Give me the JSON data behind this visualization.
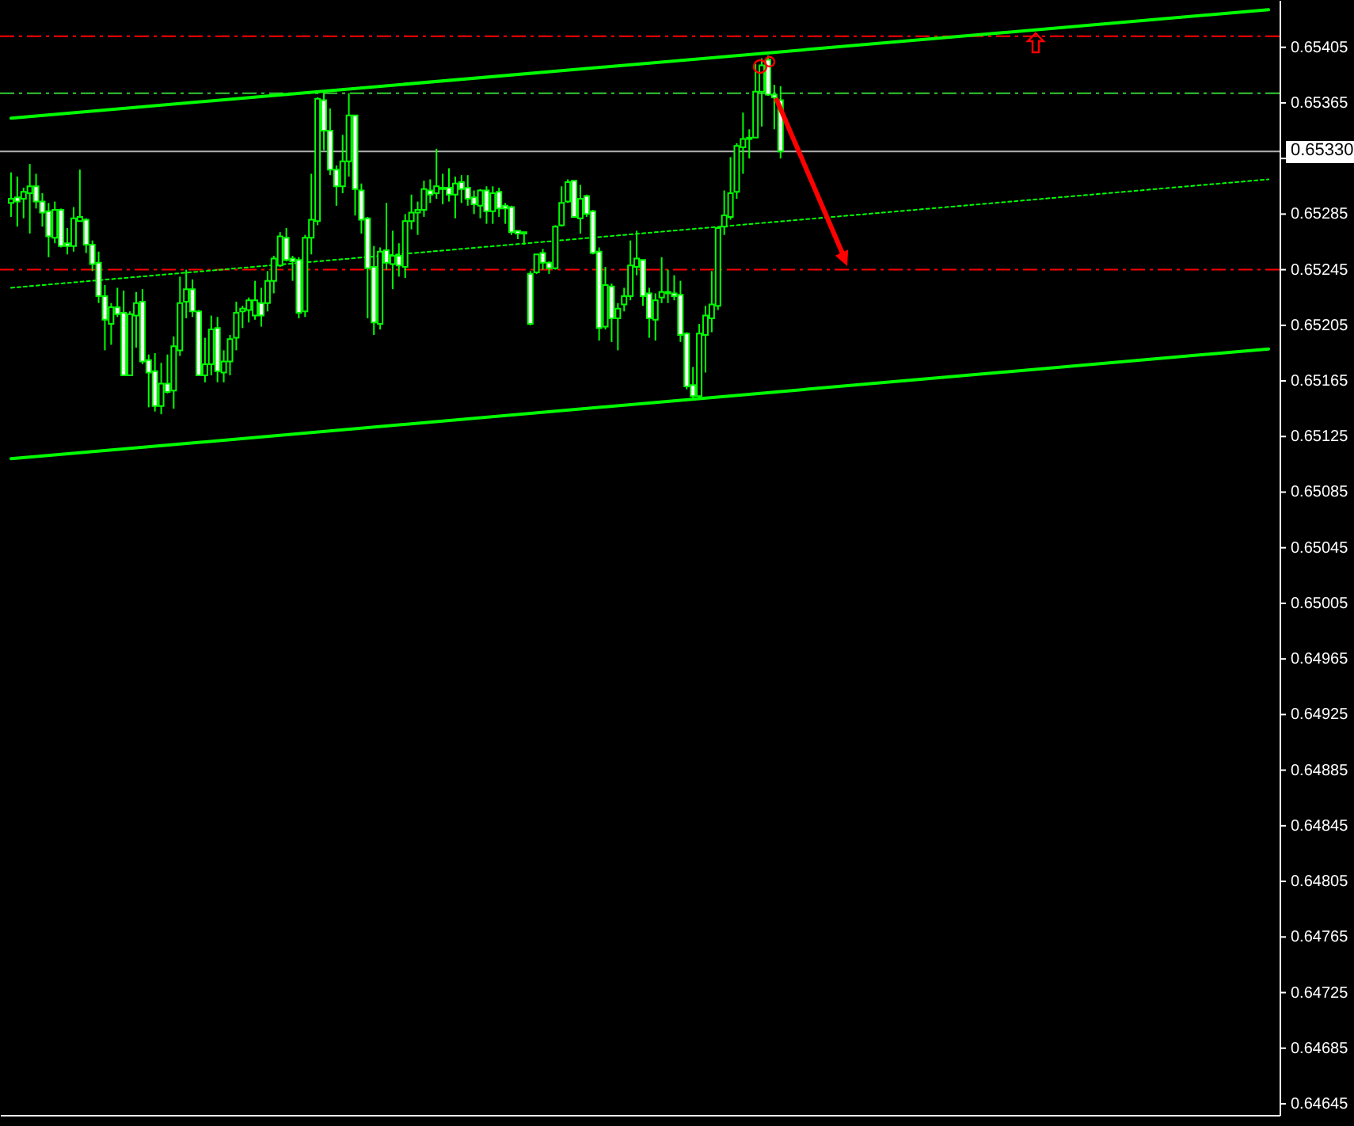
{
  "chart_data": {
    "type": "candlestick",
    "categories": [
      null,
      null,
      null,
      null,
      null,
      null,
      null,
      null,
      null,
      null,
      null,
      null,
      null,
      null,
      null,
      null,
      null,
      null,
      null,
      null,
      null,
      null,
      null,
      null,
      null,
      null,
      null,
      null,
      null,
      null,
      null,
      null,
      null,
      null,
      null,
      null,
      null,
      null,
      null,
      null,
      null,
      null,
      null,
      null,
      null,
      null,
      null,
      null,
      null,
      null,
      null,
      null,
      null,
      null,
      null,
      null,
      null,
      null,
      null,
      null,
      null,
      null,
      null,
      null,
      null,
      null,
      null,
      null,
      null,
      null,
      null,
      null,
      null,
      null,
      null,
      null,
      null,
      null,
      null,
      null,
      null,
      null,
      null,
      null,
      null,
      null,
      null,
      null,
      null,
      null,
      null,
      null,
      null,
      null,
      null,
      null,
      null,
      null,
      null,
      null,
      null,
      null,
      null,
      null,
      null,
      null,
      null,
      null,
      null,
      null,
      null,
      null,
      null,
      null,
      null,
      null,
      null,
      null,
      null,
      null,
      null,
      null,
      null,
      null,
      null,
      null,
      null,
      null,
      null,
      null,
      null,
      null,
      null,
      null,
      null,
      null,
      null,
      null,
      null,
      null,
      null,
      null,
      null,
      null,
      null,
      null,
      null,
      null,
      null,
      null,
      null,
      null,
      null,
      null,
      null,
      null,
      null,
      null,
      null,
      null,
      null,
      null,
      null,
      null,
      null,
      null,
      null,
      null,
      null,
      null,
      null,
      null,
      null,
      null,
      null,
      null,
      null,
      null,
      null,
      null,
      null,
      null,
      null,
      null,
      null,
      null,
      null,
      null,
      null,
      null,
      null,
      null,
      null,
      null,
      null,
      null,
      null,
      null,
      null,
      null,
      null,
      null
    ],
    "series": [
      {
        "type": "line",
        "color": "#00ff00",
        "line_style": "solid",
        "values": [
          0.65354,
          null,
          null,
          null,
          null,
          null,
          null,
          null,
          null,
          null,
          null,
          null,
          null,
          null,
          null,
          null,
          null,
          null,
          null,
          null,
          null,
          null,
          null,
          null,
          null,
          null,
          null,
          null,
          null,
          null,
          null,
          null,
          null,
          null,
          null,
          null,
          null,
          null,
          null,
          null,
          null,
          null,
          null,
          null,
          null,
          null,
          null,
          null,
          null,
          null,
          null,
          null,
          null,
          null,
          null,
          null,
          null,
          null,
          null,
          null,
          null,
          null,
          null,
          null,
          null,
          null,
          null,
          null,
          null,
          null,
          null,
          null,
          null,
          null,
          null,
          null,
          null,
          null,
          null,
          null,
          null,
          null,
          null,
          null,
          null,
          null,
          null,
          null,
          null,
          null,
          null,
          null,
          null,
          null,
          null,
          null,
          null,
          null,
          null,
          null,
          null,
          null,
          null,
          null,
          null,
          null,
          null,
          null,
          null,
          null,
          null,
          null,
          null,
          null,
          null,
          null,
          null,
          null,
          null,
          null,
          null,
          null,
          null,
          null,
          null,
          null,
          null,
          null,
          null,
          null,
          null,
          null,
          null,
          null,
          null,
          null,
          null,
          null,
          null,
          null,
          null,
          null,
          null,
          null,
          null,
          null,
          null,
          null,
          null,
          null,
          null,
          null,
          null,
          null,
          null,
          null,
          null,
          null,
          null,
          null,
          null,
          null,
          null,
          null,
          null,
          null,
          null,
          null,
          null,
          null,
          null,
          null,
          null,
          null,
          null,
          null,
          null,
          null,
          null,
          null,
          null,
          null,
          null,
          null,
          null,
          null,
          null,
          null,
          null,
          null,
          null,
          null,
          null,
          null,
          null,
          null,
          null,
          null,
          null,
          null,
          null,
          0.65432
        ]
      },
      {
        "type": "line",
        "color": "#00ff00",
        "line_style": "solid",
        "values": [
          0.65109,
          null,
          null,
          null,
          null,
          null,
          null,
          null,
          null,
          null,
          null,
          null,
          null,
          null,
          null,
          null,
          null,
          null,
          null,
          null,
          null,
          null,
          null,
          null,
          null,
          null,
          null,
          null,
          null,
          null,
          null,
          null,
          null,
          null,
          null,
          null,
          null,
          null,
          null,
          null,
          null,
          null,
          null,
          null,
          null,
          null,
          null,
          null,
          null,
          null,
          null,
          null,
          null,
          null,
          null,
          null,
          null,
          null,
          null,
          null,
          null,
          null,
          null,
          null,
          null,
          null,
          null,
          null,
          null,
          null,
          null,
          null,
          null,
          null,
          null,
          null,
          null,
          null,
          null,
          null,
          null,
          null,
          null,
          null,
          null,
          null,
          null,
          null,
          null,
          null,
          null,
          null,
          null,
          null,
          null,
          null,
          null,
          null,
          null,
          null,
          null,
          null,
          null,
          null,
          null,
          null,
          null,
          null,
          null,
          null,
          null,
          null,
          null,
          null,
          null,
          null,
          null,
          null,
          null,
          null,
          null,
          null,
          null,
          null,
          null,
          null,
          null,
          null,
          null,
          null,
          null,
          null,
          null,
          null,
          null,
          null,
          null,
          null,
          null,
          null,
          null,
          null,
          null,
          null,
          null,
          null,
          null,
          null,
          null,
          null,
          null,
          null,
          null,
          null,
          null,
          null,
          null,
          null,
          null,
          null,
          null,
          null,
          null,
          null,
          null,
          null,
          null,
          null,
          null,
          null,
          null,
          null,
          null,
          null,
          null,
          null,
          null,
          null,
          null,
          null,
          null,
          null,
          null,
          null,
          null,
          null,
          null,
          null,
          null,
          null,
          null,
          null,
          null,
          null,
          null,
          null,
          null,
          null,
          null,
          null,
          null,
          0.65188
        ]
      },
      {
        "type": "line",
        "color": "#00ff00",
        "line_style": "dotted",
        "values": [
          0.65232,
          null,
          null,
          null,
          null,
          null,
          null,
          null,
          null,
          null,
          null,
          null,
          null,
          null,
          null,
          null,
          null,
          null,
          null,
          null,
          null,
          null,
          null,
          null,
          null,
          null,
          null,
          null,
          null,
          null,
          null,
          null,
          null,
          null,
          null,
          null,
          null,
          null,
          null,
          null,
          null,
          null,
          null,
          null,
          null,
          null,
          null,
          null,
          null,
          null,
          null,
          null,
          null,
          null,
          null,
          null,
          null,
          null,
          null,
          null,
          null,
          null,
          null,
          null,
          null,
          null,
          null,
          null,
          null,
          null,
          null,
          null,
          null,
          null,
          null,
          null,
          null,
          null,
          null,
          null,
          null,
          null,
          null,
          null,
          null,
          null,
          null,
          null,
          null,
          null,
          null,
          null,
          null,
          null,
          null,
          null,
          null,
          null,
          null,
          null,
          null,
          null,
          null,
          null,
          null,
          null,
          null,
          null,
          null,
          null,
          null,
          null,
          null,
          null,
          null,
          null,
          null,
          null,
          null,
          null,
          null,
          null,
          null,
          null,
          null,
          null,
          null,
          null,
          null,
          null,
          null,
          null,
          null,
          null,
          null,
          null,
          null,
          null,
          null,
          null,
          null,
          null,
          null,
          null,
          null,
          null,
          null,
          null,
          null,
          null,
          null,
          null,
          null,
          null,
          null,
          null,
          null,
          null,
          null,
          null,
          null,
          null,
          null,
          null,
          null,
          null,
          null,
          null,
          null,
          null,
          null,
          null,
          null,
          null,
          null,
          null,
          null,
          null,
          null,
          null,
          null,
          null,
          null,
          null,
          null,
          null,
          null,
          null,
          null,
          null,
          null,
          null,
          null,
          null,
          null,
          null,
          null,
          null,
          null,
          null,
          null,
          0.6531
        ]
      },
      {
        "type": "candlestick",
        "color": "#00ff00",
        "ohlc": [
          [
            0.65293,
            0.65315,
            0.65283,
            0.65296
          ],
          [
            0.65297,
            0.65312,
            0.65276,
            0.65294
          ],
          [
            0.65296,
            0.65304,
            0.65282,
            0.65301
          ],
          [
            0.653,
            0.65321,
            0.65271,
            0.65305
          ],
          [
            0.65305,
            0.65314,
            0.65289,
            0.65294
          ],
          [
            0.65294,
            0.653,
            0.65276,
            0.65286
          ],
          [
            0.65287,
            0.65293,
            0.65254,
            0.65269
          ],
          [
            0.65268,
            0.65294,
            0.65264,
            0.65288
          ],
          [
            0.65288,
            0.65289,
            0.65261,
            0.65262
          ],
          [
            0.65264,
            0.65275,
            0.65256,
            0.65262
          ],
          [
            0.65262,
            0.6529,
            0.65258,
            0.65282
          ],
          [
            0.6528,
            0.65317,
            0.6528,
            0.65283
          ],
          [
            0.65281,
            0.65282,
            0.65257,
            0.65263
          ],
          [
            0.65263,
            0.65266,
            0.65244,
            0.65249
          ],
          [
            0.6525,
            0.65258,
            0.65221,
            0.65226
          ],
          [
            0.65226,
            0.65234,
            0.65187,
            0.65209
          ],
          [
            0.65206,
            0.65221,
            0.65191,
            0.65218
          ],
          [
            0.65218,
            0.65232,
            0.65211,
            0.65213
          ],
          [
            0.65214,
            0.6523,
            0.65169,
            0.65169
          ],
          [
            0.65169,
            0.65215,
            0.65169,
            0.65213
          ],
          [
            0.65212,
            0.65229,
            0.65189,
            0.65221
          ],
          [
            0.65222,
            0.65231,
            0.65177,
            0.65179
          ],
          [
            0.6518,
            0.65184,
            0.65146,
            0.65171
          ],
          [
            0.65172,
            0.65185,
            0.65143,
            0.65147
          ],
          [
            0.65147,
            0.65178,
            0.65141,
            0.65163
          ],
          [
            0.65163,
            0.65184,
            0.65156,
            0.65157
          ],
          [
            0.65158,
            0.65197,
            0.65145,
            0.6519
          ],
          [
            0.65187,
            0.6524,
            0.65183,
            0.65221
          ],
          [
            0.65222,
            0.65245,
            0.6521,
            0.65231
          ],
          [
            0.65231,
            0.65238,
            0.65211,
            0.65215
          ],
          [
            0.65215,
            0.65216,
            0.65169,
            0.65169
          ],
          [
            0.65169,
            0.65196,
            0.65164,
            0.65177
          ],
          [
            0.65177,
            0.65212,
            0.65169,
            0.65202
          ],
          [
            0.65203,
            0.65211,
            0.65164,
            0.65172
          ],
          [
            0.65171,
            0.65187,
            0.65164,
            0.65179
          ],
          [
            0.65179,
            0.65198,
            0.65169,
            0.65195
          ],
          [
            0.65196,
            0.65222,
            0.65187,
            0.65214
          ],
          [
            0.65215,
            0.65219,
            0.65203,
            0.65217
          ],
          [
            0.65216,
            0.65225,
            0.65207,
            0.65223
          ],
          [
            0.65212,
            0.65237,
            0.65209,
            0.65223
          ],
          [
            0.65221,
            0.65232,
            0.65204,
            0.65212
          ],
          [
            0.65221,
            0.65244,
            0.65215,
            0.65237
          ],
          [
            0.65237,
            0.65255,
            0.65228,
            0.65253
          ],
          [
            0.65248,
            0.65272,
            0.65247,
            0.65269
          ],
          [
            0.65268,
            0.65275,
            0.65251,
            0.65252
          ],
          [
            0.65253,
            0.65255,
            0.65237,
            0.65251
          ],
          [
            0.65252,
            0.65254,
            0.6521,
            0.65214
          ],
          [
            0.65215,
            0.6527,
            0.65211,
            0.65268
          ],
          [
            0.65268,
            0.65314,
            0.65256,
            0.65281
          ],
          [
            0.6528,
            0.65369,
            0.65277,
            0.65368
          ],
          [
            0.65367,
            0.65372,
            0.65331,
            0.65345
          ],
          [
            0.65345,
            0.65361,
            0.65313,
            0.65317
          ],
          [
            0.65317,
            0.6532,
            0.65291,
            0.65305
          ],
          [
            0.65305,
            0.65342,
            0.653,
            0.65323
          ],
          [
            0.65323,
            0.65372,
            0.65312,
            0.65356
          ],
          [
            0.65356,
            0.65356,
            0.65284,
            0.65303
          ],
          [
            0.65302,
            0.65307,
            0.65271,
            0.65281
          ],
          [
            0.65282,
            0.65283,
            0.6521,
            0.65246
          ],
          [
            0.65247,
            0.65262,
            0.65198,
            0.65207
          ],
          [
            0.65206,
            0.65261,
            0.65202,
            0.65258
          ],
          [
            0.65259,
            0.65293,
            0.65245,
            0.6525
          ],
          [
            0.65249,
            0.65273,
            0.65231,
            0.65255
          ],
          [
            0.65255,
            0.65264,
            0.6524,
            0.65248
          ],
          [
            0.65247,
            0.65285,
            0.65239,
            0.6528
          ],
          [
            0.6528,
            0.65299,
            0.65274,
            0.65286
          ],
          [
            0.65286,
            0.65294,
            0.6527,
            0.65288
          ],
          [
            0.65288,
            0.65309,
            0.65283,
            0.65303
          ],
          [
            0.65302,
            0.6531,
            0.65293,
            0.65299
          ],
          [
            0.653,
            0.65332,
            0.65296,
            0.65305
          ],
          [
            0.65303,
            0.65314,
            0.65292,
            0.65304
          ],
          [
            0.65304,
            0.65318,
            0.65294,
            0.65299
          ],
          [
            0.65299,
            0.65312,
            0.65282,
            0.65307
          ],
          [
            0.65308,
            0.65313,
            0.65293,
            0.65303
          ],
          [
            0.65304,
            0.65313,
            0.65291,
            0.65296
          ],
          [
            0.65297,
            0.65302,
            0.65285,
            0.65292
          ],
          [
            0.65291,
            0.65303,
            0.65282,
            0.65302
          ],
          [
            0.65302,
            0.65305,
            0.65278,
            0.65287
          ],
          [
            0.65287,
            0.65305,
            0.65278,
            0.653
          ],
          [
            0.65301,
            0.65304,
            0.65283,
            0.65289
          ],
          [
            0.65291,
            0.65293,
            0.65278,
            0.65289
          ],
          [
            0.6529,
            0.65291,
            0.6527,
            0.65272
          ],
          [
            0.65273,
            0.65273,
            0.65267,
            0.65271
          ],
          [
            0.65272,
            0.65272,
            0.65263,
            0.65271
          ],
          [
            0.65242,
            0.65244,
            0.65205,
            0.65206
          ],
          [
            0.65243,
            0.65256,
            0.65242,
            0.65256
          ],
          [
            0.65257,
            0.6526,
            0.65245,
            0.6525
          ],
          [
            0.6525,
            0.65251,
            0.65242,
            0.65246
          ],
          [
            0.65246,
            0.65277,
            0.65245,
            0.65276
          ],
          [
            0.65277,
            0.65305,
            0.65276,
            0.65293
          ],
          [
            0.65294,
            0.6531,
            0.65293,
            0.65308
          ],
          [
            0.65309,
            0.65309,
            0.65283,
            0.65283
          ],
          [
            0.65282,
            0.65306,
            0.65271,
            0.65296
          ],
          [
            0.65298,
            0.65299,
            0.65283,
            0.65285
          ],
          [
            0.65287,
            0.65288,
            0.65256,
            0.65257
          ],
          [
            0.65258,
            0.65261,
            0.65194,
            0.65203
          ],
          [
            0.65204,
            0.65247,
            0.65202,
            0.65234
          ],
          [
            0.65233,
            0.65235,
            0.65193,
            0.6521
          ],
          [
            0.6521,
            0.65221,
            0.65187,
            0.65217
          ],
          [
            0.6522,
            0.65232,
            0.65215,
            0.65226
          ],
          [
            0.65226,
            0.65266,
            0.65223,
            0.65248
          ],
          [
            0.65247,
            0.65273,
            0.65241,
            0.65253
          ],
          [
            0.65252,
            0.65252,
            0.65219,
            0.65226
          ],
          [
            0.65228,
            0.65232,
            0.65196,
            0.6521
          ],
          [
            0.65209,
            0.65228,
            0.65194,
            0.65223
          ],
          [
            0.65225,
            0.65254,
            0.65221,
            0.65229
          ],
          [
            0.65229,
            0.65245,
            0.65221,
            0.65228
          ],
          [
            0.65228,
            0.65241,
            0.65223,
            0.65226
          ],
          [
            0.65227,
            0.65237,
            0.65193,
            0.65198
          ],
          [
            0.65199,
            0.652,
            0.65159,
            0.65161
          ],
          [
            0.65162,
            0.65175,
            0.65152,
            0.65154
          ],
          [
            0.65154,
            0.65206,
            0.65153,
            0.65199
          ],
          [
            0.65198,
            0.65219,
            0.65171,
            0.65212
          ],
          [
            0.6521,
            0.65244,
            0.652,
            0.6522
          ],
          [
            0.65219,
            0.65276,
            0.65216,
            0.65275
          ],
          [
            0.65276,
            0.65302,
            0.6527,
            0.65284
          ],
          [
            0.65283,
            0.65326,
            0.65281,
            0.653
          ],
          [
            0.65301,
            0.65336,
            0.65296,
            0.65334
          ],
          [
            0.65333,
            0.65358,
            0.65314,
            0.65339
          ],
          [
            0.65339,
            0.65346,
            0.65325,
            0.6534
          ],
          [
            0.6534,
            0.65393,
            0.6534,
            0.65373
          ],
          [
            0.65373,
            0.65397,
            0.65348,
            0.65392
          ],
          [
            0.65396,
            0.65399,
            0.6537,
            0.65371
          ],
          [
            0.65371,
            0.65378,
            0.65346,
            0.65369
          ],
          [
            0.65367,
            0.65377,
            0.65325,
            0.6533
          ],
          null,
          null,
          null,
          null,
          null,
          null,
          null,
          null,
          null,
          null,
          null,
          null,
          null,
          null,
          null,
          null,
          null,
          null,
          null,
          null,
          null,
          null,
          null,
          null,
          null,
          null,
          null,
          null,
          null,
          null,
          null,
          null,
          null,
          null,
          null,
          null,
          null,
          null,
          null,
          null,
          null,
          null,
          null,
          null,
          null,
          null,
          null,
          null,
          null,
          null,
          null,
          null,
          null,
          null,
          null,
          null,
          null,
          null,
          null,
          null,
          null,
          null,
          null,
          null,
          null,
          null,
          null,
          null,
          null,
          null,
          null,
          null,
          null,
          null,
          null,
          null,
          null,
          null
        ]
      }
    ],
    "ylim": [
      0.64637,
      0.65439
    ],
    "yticks": [
      0.65405,
      0.65365,
      {
        "value": 0.65325,
        "label": null
      },
      0.65285,
      0.65245,
      0.65205,
      0.65165,
      0.65125,
      0.65085,
      0.65045,
      0.65005,
      0.64965,
      0.64925,
      0.64885,
      0.64845,
      0.64805,
      0.64765,
      0.64725,
      0.64685,
      0.64645
    ],
    "ref_lines": [
      {
        "axis": "y",
        "value": 0.65413,
        "color": "#ff0000",
        "line_style": "dashed"
      },
      {
        "axis": "y",
        "value": 0.65372,
        "color": "#32cd32",
        "line_style": "dashed"
      },
      {
        "axis": "y",
        "value": 0.6533,
        "color": "#b0b0b0",
        "line_style": "solid",
        "label": "0.65330"
      },
      {
        "axis": "y",
        "value": 0.65245,
        "color": "#ff0000",
        "line_style": "dashed"
      }
    ],
    "tick_labels": "y"
  }
}
